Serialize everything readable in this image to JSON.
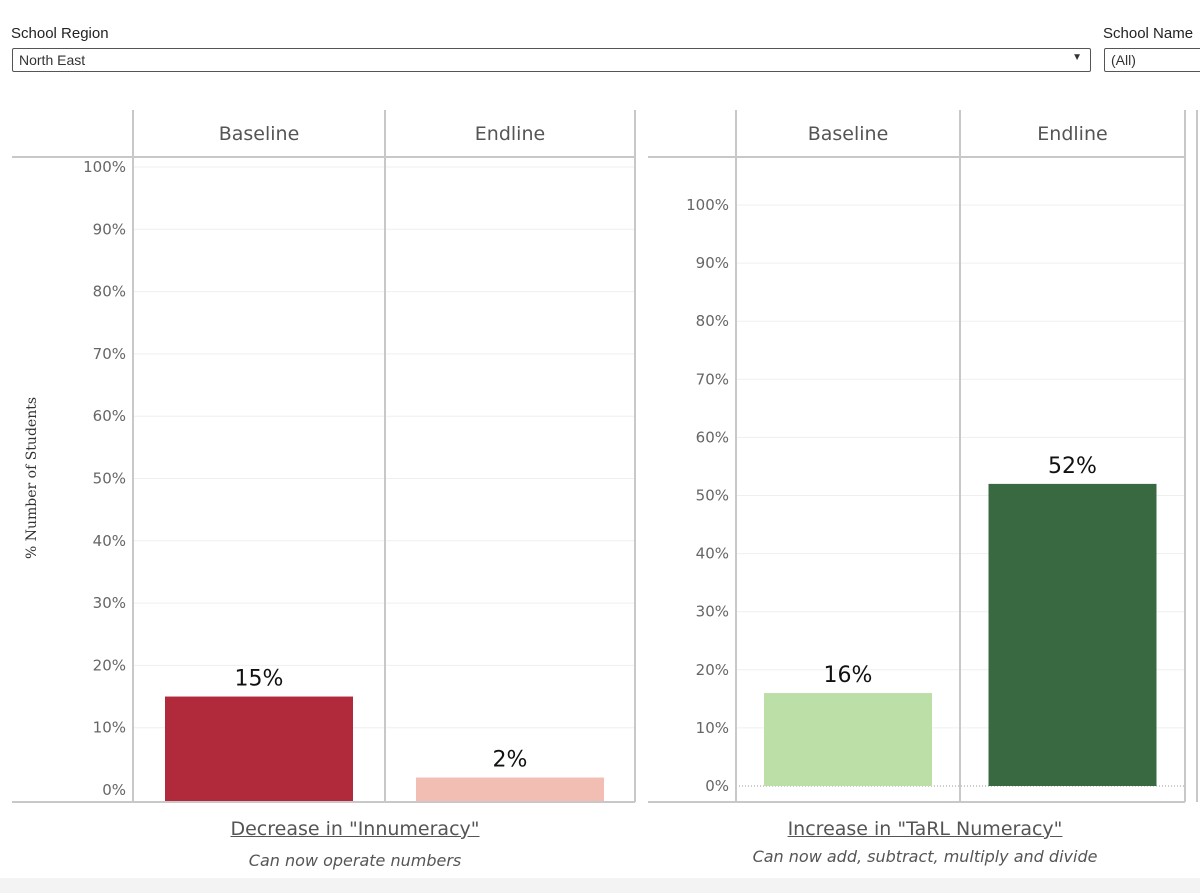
{
  "filters": {
    "region_label": "School Region",
    "region_value": "North East",
    "school_label": "School Name",
    "school_value": "(All)"
  },
  "y_axis_label": "% Number of Students",
  "chart_data": [
    {
      "type": "bar",
      "categories": [
        "Baseline",
        "Endline"
      ],
      "values": [
        15,
        2
      ],
      "value_labels": [
        "15%",
        "2%"
      ],
      "colors": [
        "#b02a3c",
        "#f2bdb3"
      ],
      "ylim": [
        0,
        100
      ],
      "ytick_labels": [
        "0%",
        "10%",
        "20%",
        "30%",
        "40%",
        "50%",
        "60%",
        "70%",
        "80%",
        "90%",
        "100%"
      ],
      "ylabel": "% Number of Students",
      "title": "Decrease in \"Innumeracy\"",
      "subtitle": "Can now operate numbers",
      "grid": true
    },
    {
      "type": "bar",
      "categories": [
        "Baseline",
        "Endline"
      ],
      "values": [
        16,
        52
      ],
      "value_labels": [
        "16%",
        "52%"
      ],
      "colors": [
        "#bcdfa8",
        "#386941"
      ],
      "ylim": [
        0,
        100
      ],
      "ytick_labels": [
        "0%",
        "10%",
        "20%",
        "30%",
        "40%",
        "50%",
        "60%",
        "70%",
        "80%",
        "90%",
        "100%"
      ],
      "title": "Increase in \"TaRL Numeracy\"",
      "subtitle": "Can now add, subtract, multiply and divide",
      "grid": true
    }
  ],
  "footer": {
    "left_title": "Decrease in \"Innumeracy\"",
    "left_subtitle": "Can now operate numbers",
    "right_title": "Increase in \"TaRL Numeracy\"",
    "right_subtitle": "Can now add, subtract, multiply and divide"
  },
  "icons": {
    "dropdown": "chevron-down-icon"
  }
}
